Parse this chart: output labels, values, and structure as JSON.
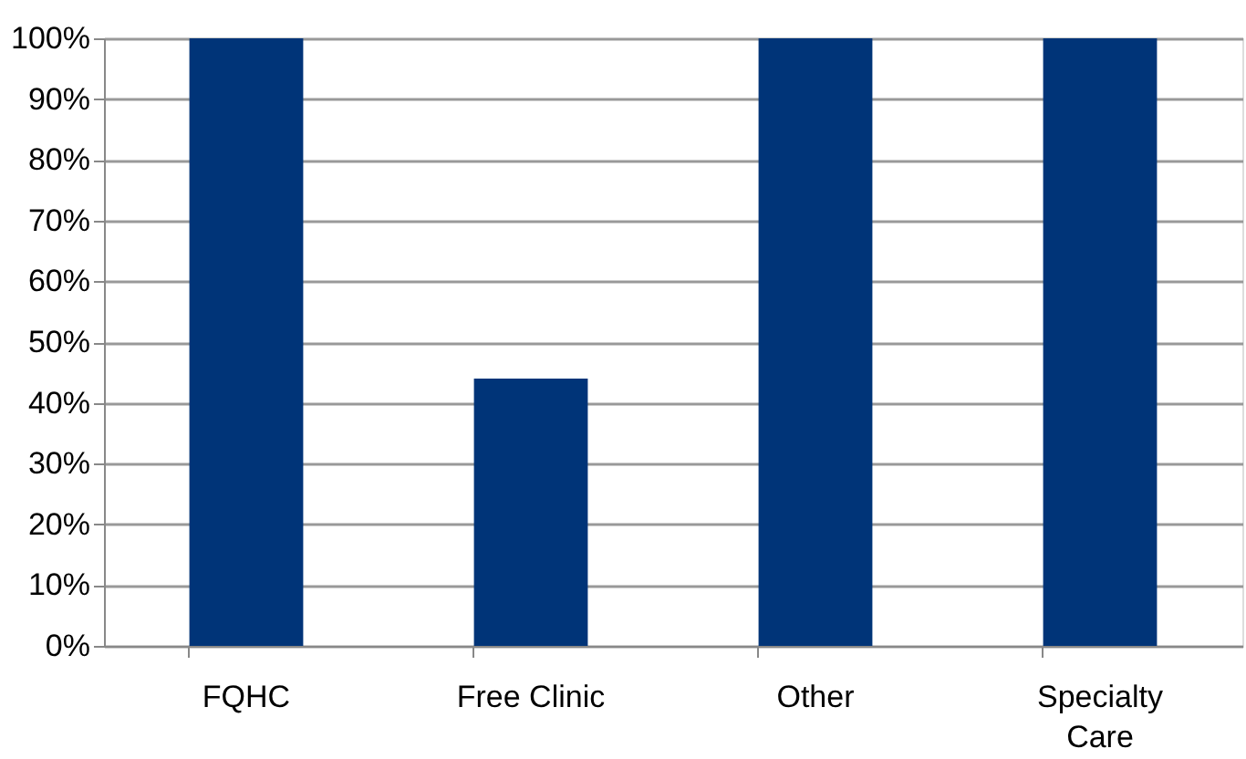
{
  "chart_data": {
    "type": "bar",
    "categories": [
      "FQHC",
      "Free Clinic",
      "Other",
      "Specialty Care"
    ],
    "values": [
      100,
      44,
      100,
      100
    ],
    "color": "#003478",
    "ylim": [
      0,
      100
    ],
    "yticks": [
      {
        "value": 0,
        "label": "0%"
      },
      {
        "value": 10,
        "label": "10%"
      },
      {
        "value": 20,
        "label": "20%"
      },
      {
        "value": 30,
        "label": "30%"
      },
      {
        "value": 40,
        "label": "40%"
      },
      {
        "value": 50,
        "label": "50%"
      },
      {
        "value": 60,
        "label": "60%"
      },
      {
        "value": 70,
        "label": "70%"
      },
      {
        "value": 80,
        "label": "80%"
      },
      {
        "value": 90,
        "label": "90%"
      },
      {
        "value": 100,
        "label": "100%"
      }
    ],
    "grid": "y"
  }
}
